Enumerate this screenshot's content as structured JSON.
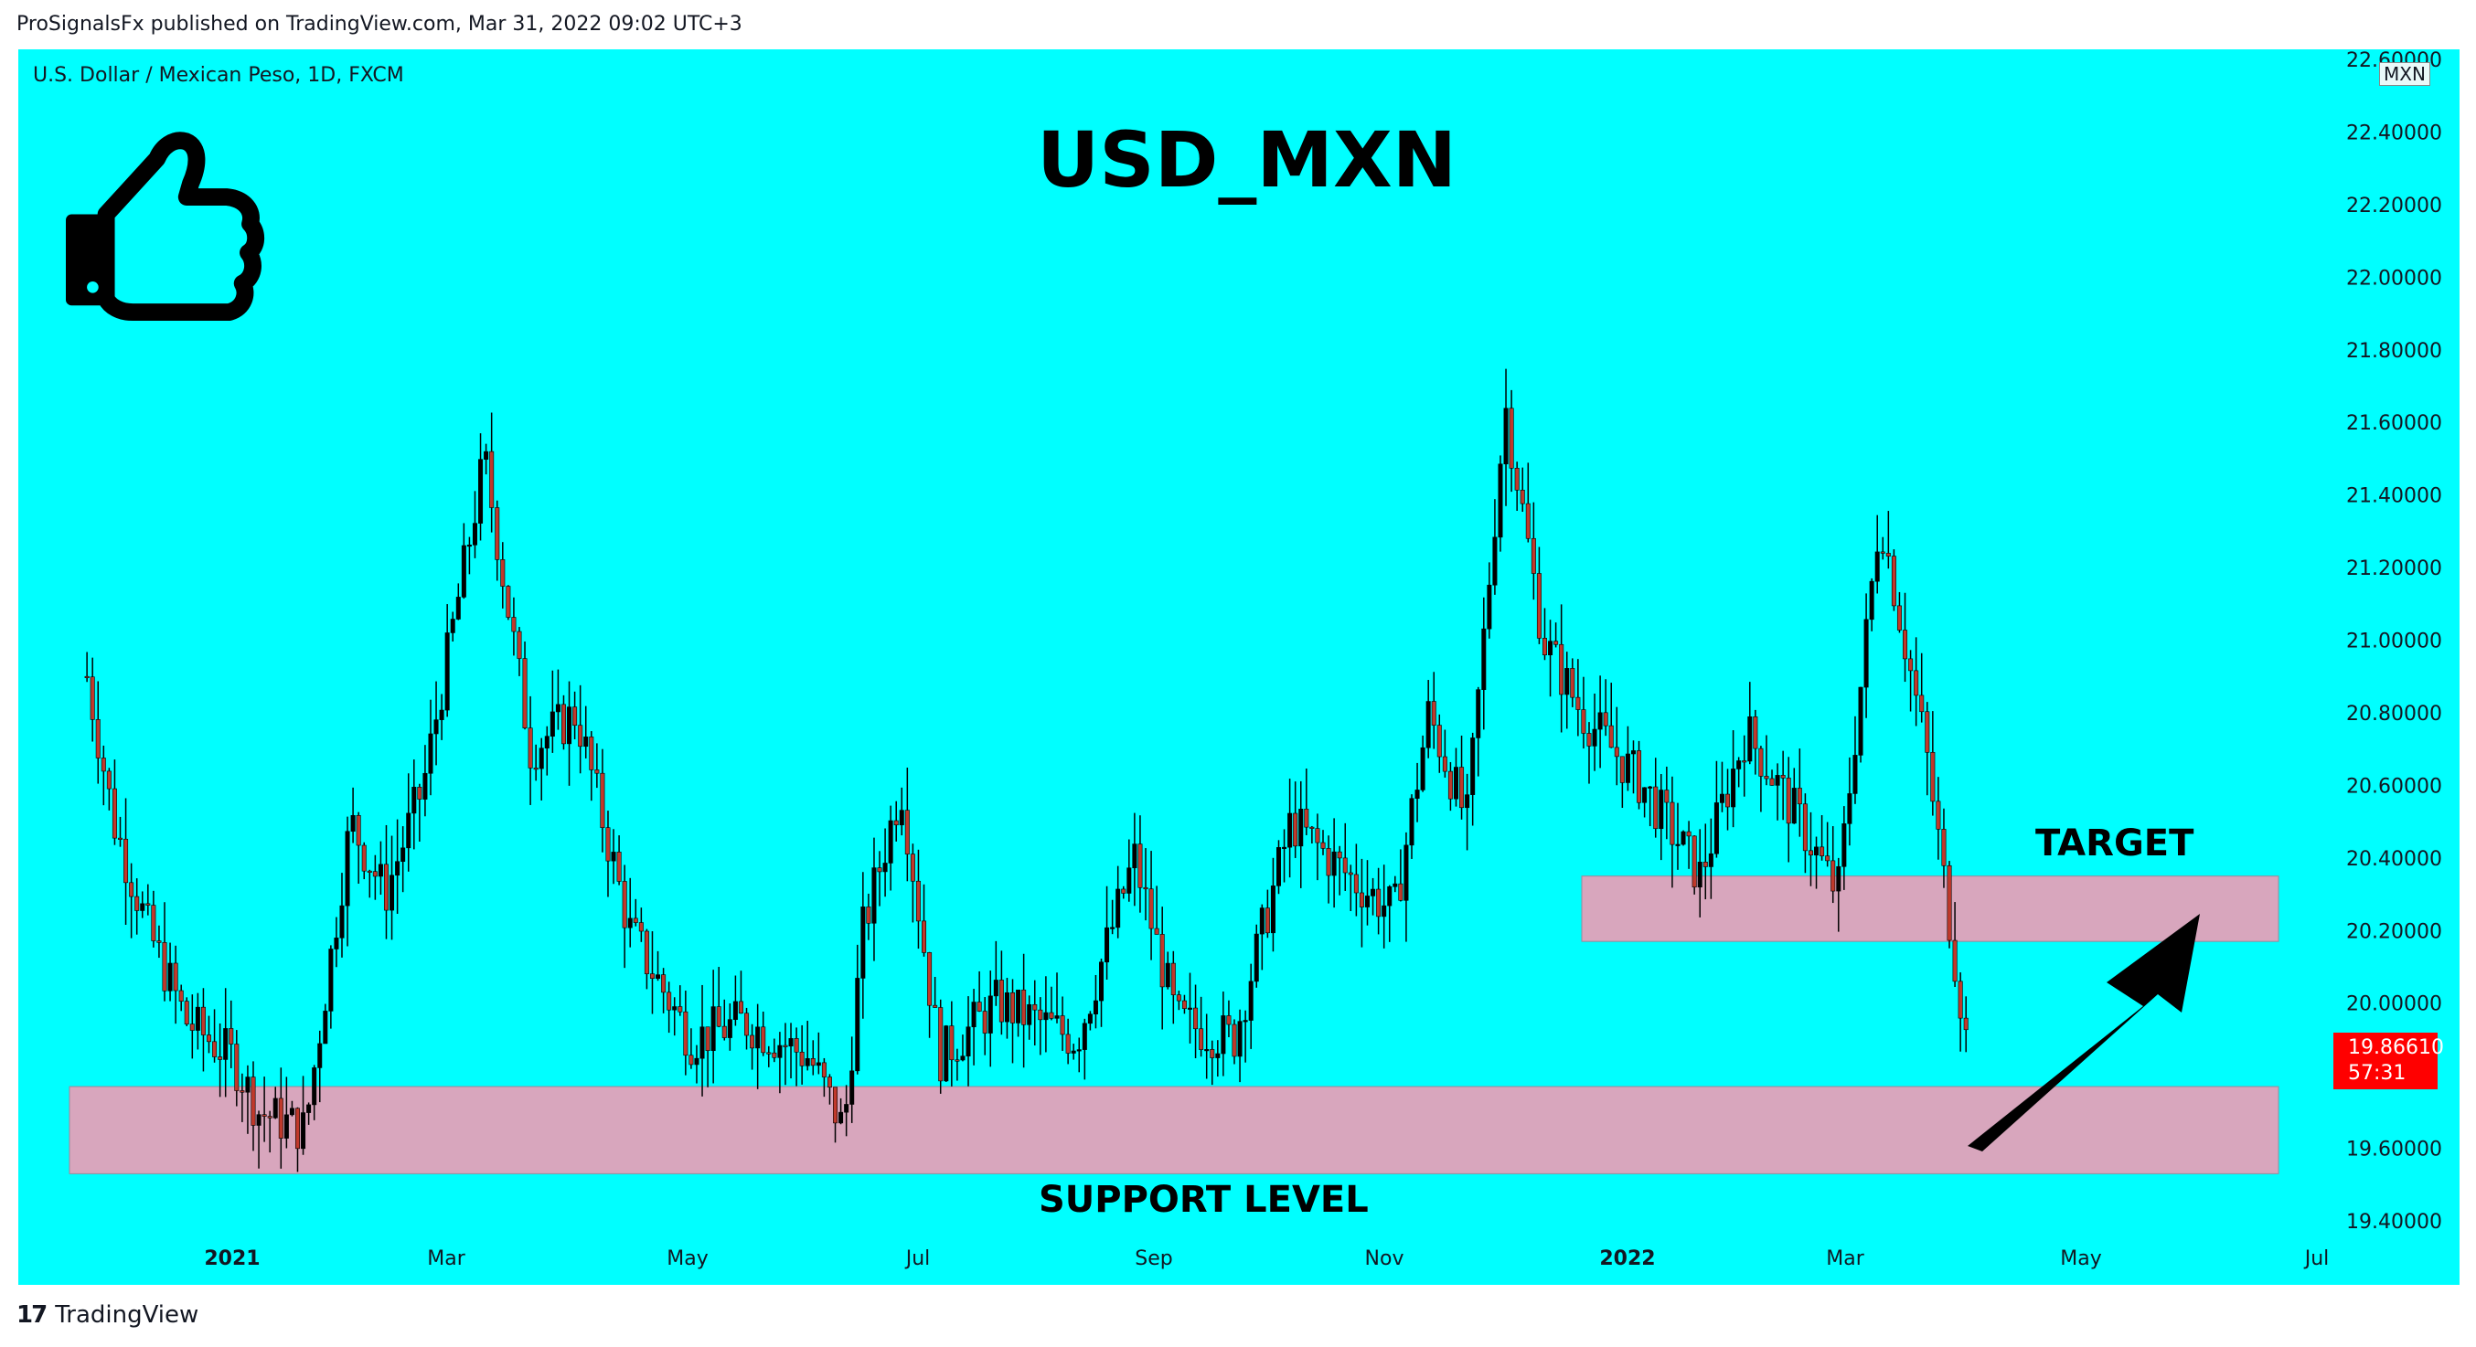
{
  "header": {
    "published_text": "ProSignalsFx published on TradingView.com, Mar 31, 2022 09:02 UTC+3"
  },
  "symbol_info": "U.S. Dollar / Mexican Peso, 1D, FXCM",
  "currency_badge": "MXN",
  "footer": {
    "brand": "TradingView",
    "logo": "17"
  },
  "current_price": {
    "value": "19.86610",
    "countdown": "57:31",
    "color": "#ff0000"
  },
  "colors": {
    "background": "#00ffff",
    "zone": "#d8a6bd",
    "candle": "#000000",
    "candle_down": "#c0392b"
  },
  "annotations": {
    "title": "USD_MXN",
    "target_label": "TARGET",
    "support_label": "SUPPORT LEVEL",
    "icons": [
      "thumbs-up-icon",
      "arrow-up-right-icon"
    ]
  },
  "chart_data": {
    "type": "candlestick",
    "title": "USD_MXN",
    "y_axis": {
      "ticks": [
        "22.60000",
        "22.40000",
        "22.20000",
        "22.00000",
        "21.80000",
        "21.60000",
        "21.40000",
        "21.20000",
        "21.00000",
        "20.80000",
        "20.60000",
        "20.40000",
        "20.20000",
        "20.00000",
        "19.60000",
        "19.40000"
      ],
      "range": [
        19.35,
        22.6
      ]
    },
    "x_axis": {
      "labels": [
        "2021",
        "Mar",
        "May",
        "Jul",
        "Sep",
        "Nov",
        "2022",
        "Mar",
        "May",
        "Jul"
      ],
      "bold_labels": [
        "2021",
        "2022"
      ]
    },
    "zones": [
      {
        "name": "TARGET",
        "low": 20.17,
        "high": 20.35
      },
      {
        "name": "SUPPORT LEVEL",
        "low": 19.53,
        "high": 19.77
      }
    ],
    "series_close_path": [
      [
        "2020-11-24",
        20.9
      ],
      [
        "2020-12-01",
        20.5
      ],
      [
        "2020-12-10",
        20.2
      ],
      [
        "2020-12-20",
        19.95
      ],
      [
        "2021-01-01",
        19.85
      ],
      [
        "2021-01-08",
        19.7
      ],
      [
        "2021-01-20",
        19.65
      ],
      [
        "2021-02-01",
        20.5
      ],
      [
        "2021-02-10",
        20.3
      ],
      [
        "2021-02-20",
        20.6
      ],
      [
        "2021-03-08",
        21.5
      ],
      [
        "2021-03-20",
        20.7
      ],
      [
        "2021-04-01",
        20.8
      ],
      [
        "2021-04-15",
        20.2
      ],
      [
        "2021-05-01",
        19.9
      ],
      [
        "2021-05-15",
        19.95
      ],
      [
        "2021-06-01",
        19.85
      ],
      [
        "2021-06-10",
        19.65
      ],
      [
        "2021-06-15",
        20.2
      ],
      [
        "2021-06-25",
        20.6
      ],
      [
        "2021-07-05",
        19.85
      ],
      [
        "2021-07-20",
        20.0
      ],
      [
        "2021-08-10",
        19.9
      ],
      [
        "2021-08-25",
        20.4
      ],
      [
        "2021-09-05",
        19.95
      ],
      [
        "2021-09-20",
        19.9
      ],
      [
        "2021-10-05",
        20.5
      ],
      [
        "2021-10-20",
        20.35
      ],
      [
        "2021-11-01",
        20.25
      ],
      [
        "2021-11-10",
        20.8
      ],
      [
        "2021-11-20",
        20.5
      ],
      [
        "2021-11-30",
        21.65
      ],
      [
        "2021-12-10",
        21.0
      ],
      [
        "2021-12-20",
        20.8
      ],
      [
        "2022-01-05",
        20.6
      ],
      [
        "2022-01-20",
        20.35
      ],
      [
        "2022-02-01",
        20.75
      ],
      [
        "2022-02-15",
        20.5
      ],
      [
        "2022-02-25",
        20.3
      ],
      [
        "2022-03-08",
        21.35
      ],
      [
        "2022-03-20",
        20.7
      ],
      [
        "2022-03-31",
        19.87
      ]
    ]
  }
}
